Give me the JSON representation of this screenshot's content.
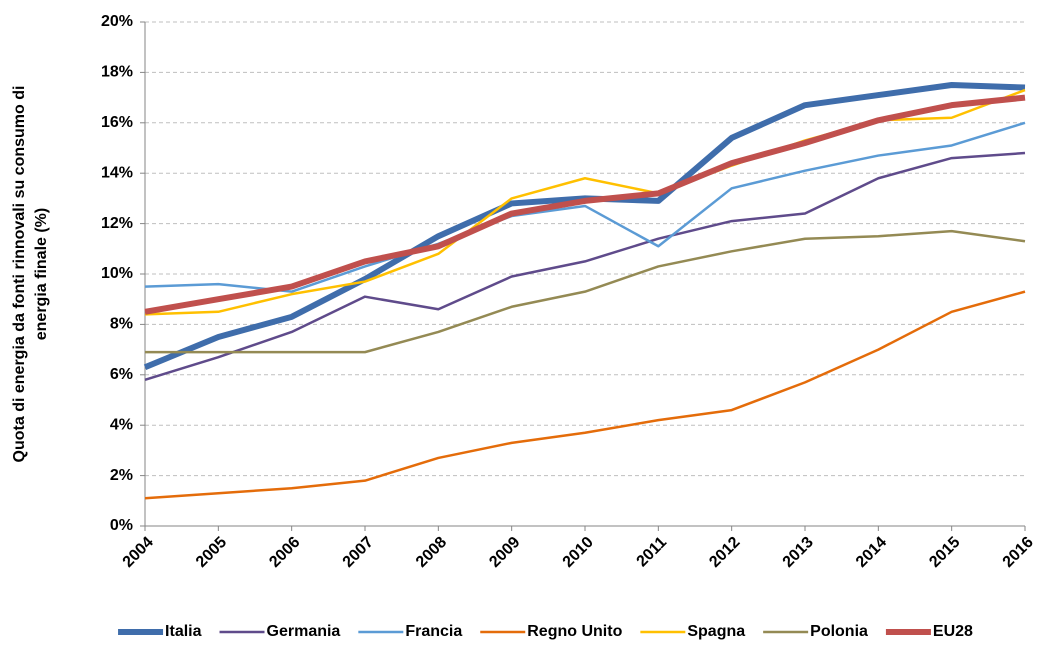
{
  "chart_data": {
    "type": "line",
    "ylabel": [
      "Quota di energia da fonti rinnovali su consumo di",
      "energia finale (%)"
    ],
    "categories": [
      "2004",
      "2005",
      "2006",
      "2007",
      "2008",
      "2009",
      "2010",
      "2011",
      "2012",
      "2013",
      "2014",
      "2015",
      "2016"
    ],
    "ylim": [
      0,
      20
    ],
    "yticks": [
      {
        "value": 0,
        "label": "0%"
      },
      {
        "value": 2,
        "label": "2%"
      },
      {
        "value": 4,
        "label": "4%"
      },
      {
        "value": 6,
        "label": "6%"
      },
      {
        "value": 8,
        "label": "8%"
      },
      {
        "value": 10,
        "label": "10%"
      },
      {
        "value": 12,
        "label": "12%"
      },
      {
        "value": 14,
        "label": "14%"
      },
      {
        "value": 16,
        "label": "16%"
      },
      {
        "value": 18,
        "label": "18%"
      },
      {
        "value": 20,
        "label": "20%"
      }
    ],
    "grid": true,
    "legend": "bottom",
    "series": [
      {
        "name": "Italia",
        "color": "#3f6dab",
        "width": 6,
        "values": [
          6.3,
          7.5,
          8.3,
          9.8,
          11.5,
          12.8,
          13.0,
          12.9,
          15.4,
          16.7,
          17.1,
          17.5,
          17.4
        ]
      },
      {
        "name": "Germania",
        "color": "#5f4b8b",
        "width": 2.5,
        "values": [
          5.8,
          6.7,
          7.7,
          9.1,
          8.6,
          9.9,
          10.5,
          11.4,
          12.1,
          12.4,
          13.8,
          14.6,
          14.8
        ]
      },
      {
        "name": "Francia",
        "color": "#5b9bd5",
        "width": 2.5,
        "values": [
          9.5,
          9.6,
          9.3,
          10.3,
          11.2,
          12.3,
          12.7,
          11.1,
          13.4,
          14.1,
          14.7,
          15.1,
          16.0
        ]
      },
      {
        "name": "Regno Unito",
        "color": "#e46c0a",
        "width": 2.5,
        "values": [
          1.1,
          1.3,
          1.5,
          1.8,
          2.7,
          3.3,
          3.7,
          4.2,
          4.6,
          5.7,
          7.0,
          8.5,
          9.3
        ]
      },
      {
        "name": "Spagna",
        "color": "#ffc000",
        "width": 2.5,
        "values": [
          8.4,
          8.5,
          9.2,
          9.7,
          10.8,
          13.0,
          13.8,
          13.2,
          14.3,
          15.3,
          16.1,
          16.2,
          17.3
        ]
      },
      {
        "name": "Polonia",
        "color": "#948a54",
        "width": 2.5,
        "values": [
          6.9,
          6.9,
          6.9,
          6.9,
          7.7,
          8.7,
          9.3,
          10.3,
          10.9,
          11.4,
          11.5,
          11.7,
          11.3
        ]
      },
      {
        "name": "EU28",
        "color": "#c0504d",
        "width": 6,
        "values": [
          8.5,
          9.0,
          9.5,
          10.5,
          11.1,
          12.4,
          12.9,
          13.2,
          14.4,
          15.2,
          16.1,
          16.7,
          17.0
        ]
      }
    ]
  }
}
